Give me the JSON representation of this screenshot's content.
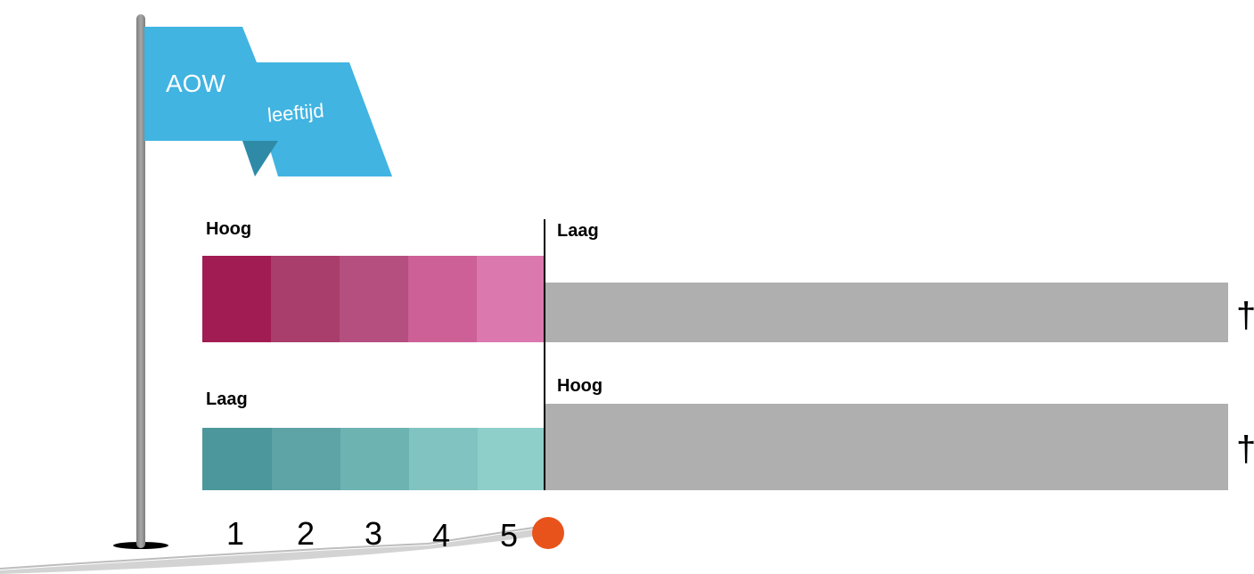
{
  "flag": {
    "line1": "AOW",
    "line2": "leeftijd",
    "color_main": "#41b4e1",
    "color_shadow": "#2f8aa8"
  },
  "top_bar": {
    "left_label": "Hoog",
    "right_label": "Laag",
    "segment_colors": [
      "#a11c52",
      "#a93d6c",
      "#b54f80",
      "#cc6097",
      "#db78ae"
    ],
    "tail_color": "#afafaf",
    "end_symbol": "†"
  },
  "bottom_bar": {
    "left_label": "Laag",
    "right_label": "Hoog",
    "segment_colors": [
      "#4b979b",
      "#5ea3a6",
      "#6cb3b2",
      "#80c3c0",
      "#8ecfca"
    ],
    "tail_color": "#afafaf",
    "end_symbol": "†"
  },
  "scale": {
    "numbers": [
      "1",
      "2",
      "3",
      "4",
      "5"
    ],
    "marker_color": "#e8531c"
  }
}
